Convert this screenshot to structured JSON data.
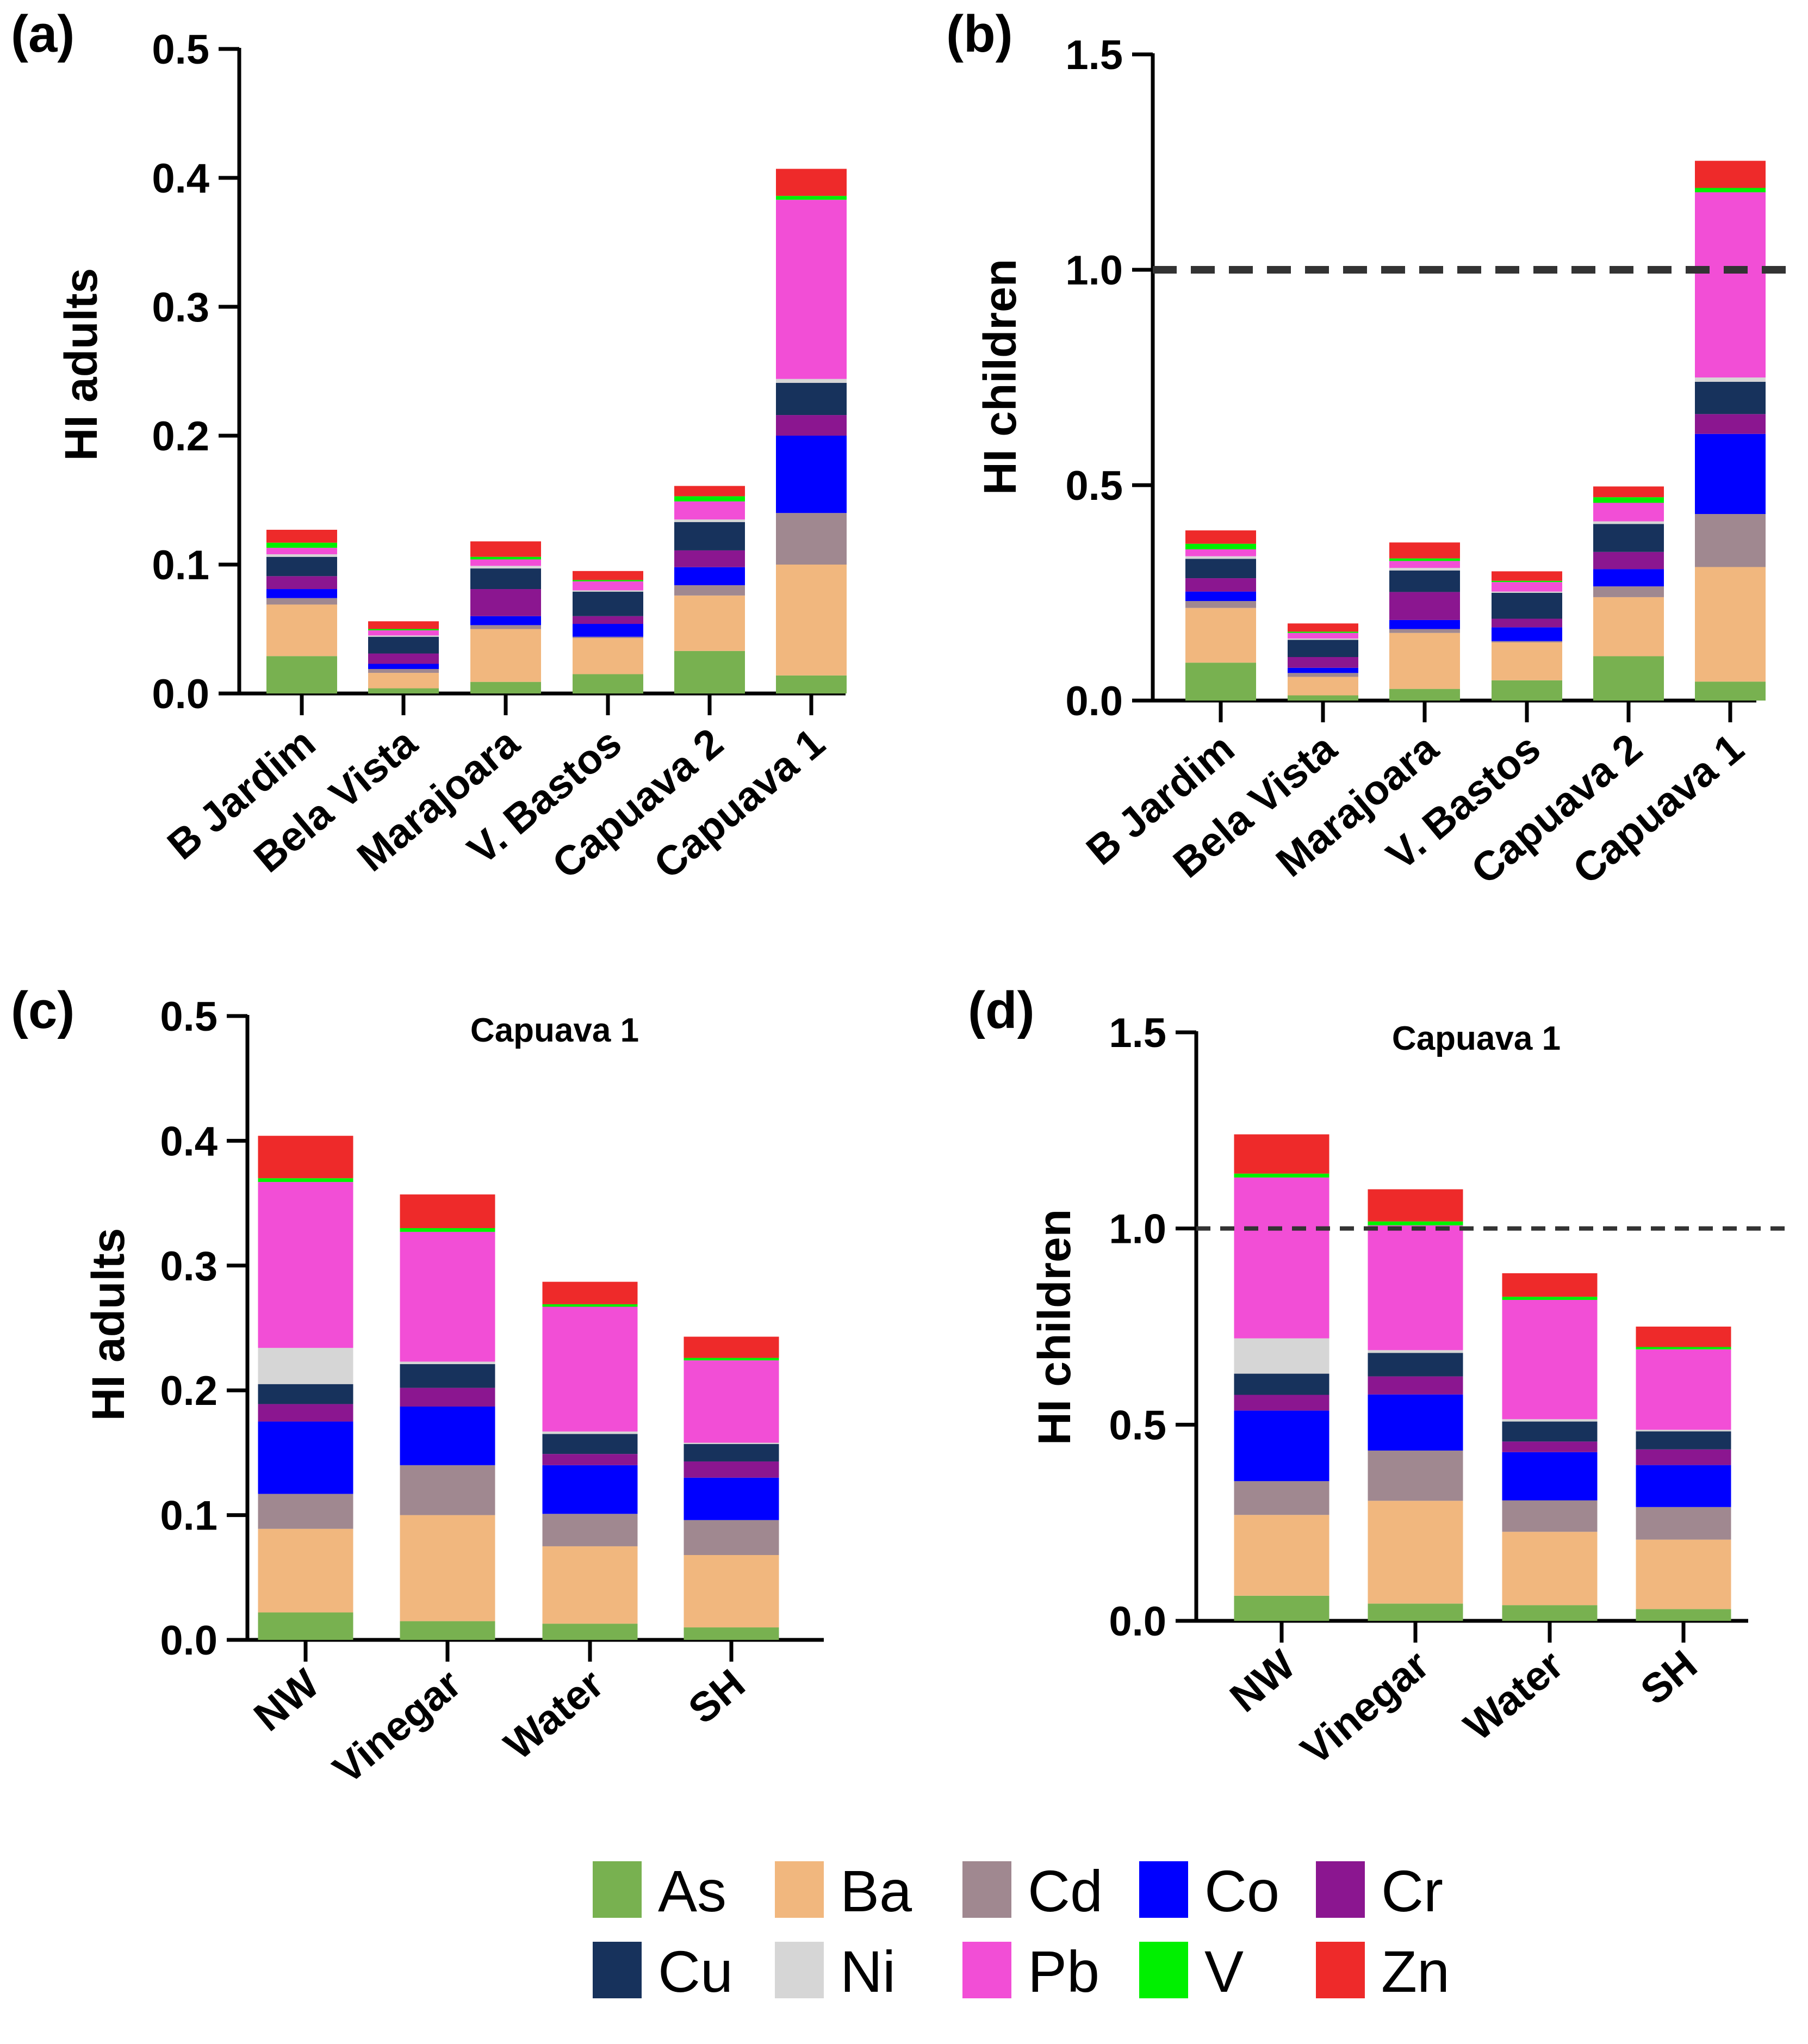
{
  "legend": {
    "items": [
      {
        "name": "As",
        "color": "#78b150"
      },
      {
        "name": "Ba",
        "color": "#f1b77e"
      },
      {
        "name": "Cd",
        "color": "#a08890"
      },
      {
        "name": "Co",
        "color": "#0000ff"
      },
      {
        "name": "Cr",
        "color": "#8b1690"
      },
      {
        "name": "Cu",
        "color": "#17325c"
      },
      {
        "name": "Ni",
        "color": "#d6d6d6"
      },
      {
        "name": "Pb",
        "color": "#f24ed6"
      },
      {
        "name": "V",
        "color": "#00f000"
      },
      {
        "name": "Zn",
        "color": "#ee2a2a"
      }
    ]
  },
  "chart_data": [
    {
      "panel": "(a)",
      "type": "bar",
      "stacked": true,
      "title": "",
      "xlabel": "",
      "ylabel": "HI adults",
      "ylim": [
        0,
        0.5
      ],
      "yticks": [
        "0.0",
        "0.1",
        "0.2",
        "0.3",
        "0.4",
        "0.5"
      ],
      "reference_line": null,
      "categories": [
        "B Jardim",
        "Bela Vista",
        "Marajoara",
        "V. Bastos",
        "Capuava 2",
        "Capuava 1"
      ],
      "series": [
        {
          "name": "As",
          "values": [
            0.029,
            0.004,
            0.009,
            0.015,
            0.033,
            0.014
          ]
        },
        {
          "name": "Ba",
          "values": [
            0.04,
            0.012,
            0.041,
            0.028,
            0.043,
            0.086
          ]
        },
        {
          "name": "Cd",
          "values": [
            0.005,
            0.003,
            0.003,
            0.001,
            0.008,
            0.04
          ]
        },
        {
          "name": "Co",
          "values": [
            0.007,
            0.004,
            0.007,
            0.01,
            0.014,
            0.06
          ]
        },
        {
          "name": "Cr",
          "values": [
            0.01,
            0.008,
            0.021,
            0.006,
            0.013,
            0.016
          ]
        },
        {
          "name": "Cu",
          "values": [
            0.015,
            0.013,
            0.016,
            0.019,
            0.022,
            0.025
          ]
        },
        {
          "name": "Ni",
          "values": [
            0.002,
            0.001,
            0.002,
            0.001,
            0.002,
            0.003
          ]
        },
        {
          "name": "Pb",
          "values": [
            0.005,
            0.004,
            0.005,
            0.007,
            0.014,
            0.139
          ]
        },
        {
          "name": "V",
          "values": [
            0.004,
            0.001,
            0.002,
            0.001,
            0.004,
            0.003
          ]
        },
        {
          "name": "Zn",
          "values": [
            0.01,
            0.006,
            0.012,
            0.007,
            0.008,
            0.021
          ]
        }
      ]
    },
    {
      "panel": "(b)",
      "type": "bar",
      "stacked": true,
      "title": "",
      "xlabel": "",
      "ylabel": "HI children",
      "ylim": [
        0,
        1.5
      ],
      "yticks": [
        "0.0",
        "0.5",
        "1.0",
        "1.5"
      ],
      "reference_line": 1.0,
      "categories": [
        "B Jardim",
        "Bela Vista",
        "Marajoara",
        "V. Bastos",
        "Capuava 2",
        "Capuava 1"
      ],
      "series": [
        {
          "name": "As",
          "values": [
            0.088,
            0.012,
            0.027,
            0.047,
            0.103,
            0.044
          ]
        },
        {
          "name": "Ba",
          "values": [
            0.127,
            0.043,
            0.13,
            0.088,
            0.137,
            0.266
          ]
        },
        {
          "name": "Cd",
          "values": [
            0.016,
            0.009,
            0.009,
            0.003,
            0.025,
            0.123
          ]
        },
        {
          "name": "Co",
          "values": [
            0.022,
            0.012,
            0.021,
            0.032,
            0.04,
            0.186
          ]
        },
        {
          "name": "Cr",
          "values": [
            0.031,
            0.025,
            0.065,
            0.02,
            0.04,
            0.046
          ]
        },
        {
          "name": "Cu",
          "values": [
            0.045,
            0.04,
            0.05,
            0.06,
            0.065,
            0.075
          ]
        },
        {
          "name": "Ni",
          "values": [
            0.006,
            0.003,
            0.006,
            0.003,
            0.006,
            0.01
          ]
        },
        {
          "name": "Pb",
          "values": [
            0.016,
            0.013,
            0.016,
            0.022,
            0.043,
            0.43
          ]
        },
        {
          "name": "V",
          "values": [
            0.013,
            0.003,
            0.006,
            0.003,
            0.013,
            0.01
          ]
        },
        {
          "name": "Zn",
          "values": [
            0.031,
            0.019,
            0.037,
            0.022,
            0.025,
            0.063
          ]
        }
      ]
    },
    {
      "panel": "(c)",
      "type": "bar",
      "stacked": true,
      "title": "Capuava 1",
      "xlabel": "",
      "ylabel": "HI adults",
      "ylim": [
        0,
        0.5
      ],
      "yticks": [
        "0.0",
        "0.1",
        "0.2",
        "0.3",
        "0.4",
        "0.5"
      ],
      "reference_line": null,
      "categories": [
        "NW",
        "Vinegar",
        "Water",
        "SH"
      ],
      "series": [
        {
          "name": "As",
          "values": [
            0.022,
            0.015,
            0.013,
            0.01
          ]
        },
        {
          "name": "Ba",
          "values": [
            0.067,
            0.085,
            0.062,
            0.058
          ]
        },
        {
          "name": "Cd",
          "values": [
            0.028,
            0.04,
            0.026,
            0.028
          ]
        },
        {
          "name": "Co",
          "values": [
            0.058,
            0.047,
            0.039,
            0.034
          ]
        },
        {
          "name": "Cr",
          "values": [
            0.014,
            0.015,
            0.009,
            0.013
          ]
        },
        {
          "name": "Cu",
          "values": [
            0.016,
            0.019,
            0.016,
            0.014
          ]
        },
        {
          "name": "Ni",
          "values": [
            0.029,
            0.002,
            0.002,
            0.001
          ]
        },
        {
          "name": "Pb",
          "values": [
            0.133,
            0.104,
            0.1,
            0.066
          ]
        },
        {
          "name": "V",
          "values": [
            0.003,
            0.003,
            0.002,
            0.002
          ]
        },
        {
          "name": "Zn",
          "values": [
            0.034,
            0.027,
            0.018,
            0.017
          ]
        }
      ]
    },
    {
      "panel": "(d)",
      "type": "bar",
      "stacked": true,
      "title": "Capuava 1",
      "xlabel": "",
      "ylabel": "HI children",
      "ylim": [
        0,
        1.5
      ],
      "yticks": [
        "0.0",
        "0.5",
        "1.0",
        "1.5"
      ],
      "reference_line": 1.0,
      "categories": [
        "NW",
        "Vinegar",
        "Water",
        "SH"
      ],
      "series": [
        {
          "name": "As",
          "values": [
            0.064,
            0.044,
            0.04,
            0.03
          ]
        },
        {
          "name": "Ba",
          "values": [
            0.206,
            0.262,
            0.187,
            0.177
          ]
        },
        {
          "name": "Cd",
          "values": [
            0.086,
            0.128,
            0.08,
            0.083
          ]
        },
        {
          "name": "Co",
          "values": [
            0.18,
            0.143,
            0.123,
            0.107
          ]
        },
        {
          "name": "Cr",
          "values": [
            0.04,
            0.046,
            0.027,
            0.04
          ]
        },
        {
          "name": "Cu",
          "values": [
            0.054,
            0.06,
            0.051,
            0.046
          ]
        },
        {
          "name": "Ni",
          "values": [
            0.09,
            0.007,
            0.006,
            0.004
          ]
        },
        {
          "name": "Pb",
          "values": [
            0.41,
            0.318,
            0.304,
            0.205
          ]
        },
        {
          "name": "V",
          "values": [
            0.01,
            0.01,
            0.008,
            0.006
          ]
        },
        {
          "name": "Zn",
          "values": [
            0.1,
            0.082,
            0.06,
            0.052
          ]
        }
      ]
    }
  ]
}
